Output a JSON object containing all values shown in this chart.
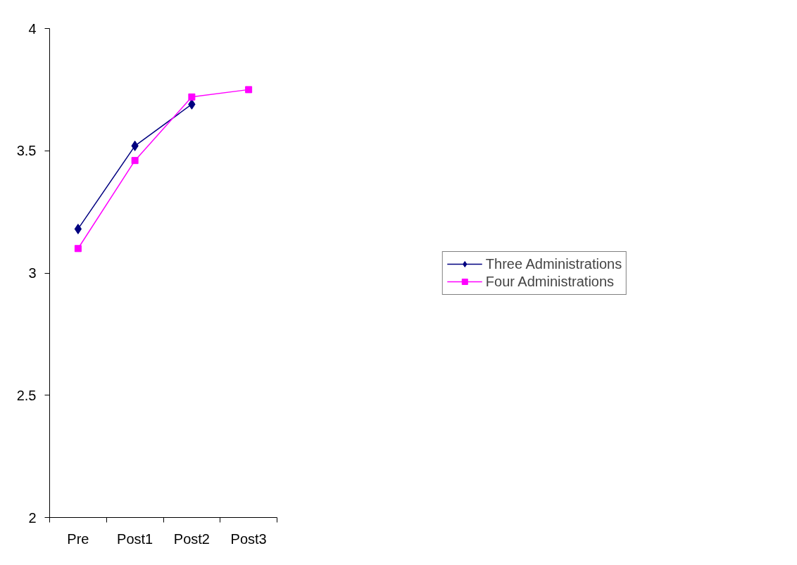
{
  "chart_data": {
    "type": "line",
    "categories": [
      "Pre",
      "Post1",
      "Post2",
      "Post3"
    ],
    "series": [
      {
        "name": "Three Administrations",
        "color": "#000080",
        "marker": "diamond",
        "values": [
          3.18,
          3.52,
          3.69,
          null
        ]
      },
      {
        "name": "Four Administrations",
        "color": "#ff00ff",
        "marker": "square",
        "values": [
          3.1,
          3.46,
          3.72,
          3.75
        ]
      }
    ],
    "ylim": [
      2,
      4
    ],
    "yticks": [
      2,
      2.5,
      3,
      3.5,
      4
    ],
    "grid": false,
    "legend": "right",
    "line_style": "solid"
  }
}
